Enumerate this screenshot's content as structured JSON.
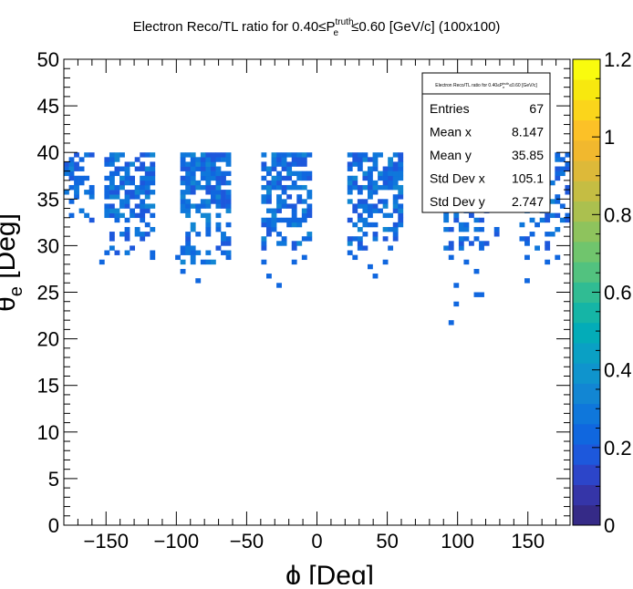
{
  "chart_data": {
    "type": "heatmap",
    "title": {
      "prefix": "Electron Reco/TL ratio for 0.40≤P",
      "sup": "truth",
      "sub": "e",
      "suffix": "≤0.60 [GeV/c] (100x100)"
    },
    "xlabel": "ϕ  [Deg]",
    "ylabel": {
      "main": "θ",
      "sub": "e",
      "rest": " [Deg]"
    },
    "xlim": [
      -180,
      180
    ],
    "ylim": [
      0,
      50
    ],
    "zlim": [
      0,
      1.2
    ],
    "bins": {
      "nx": 100,
      "ny": 100
    },
    "x_ticks": [
      -150,
      -100,
      -50,
      0,
      50,
      100,
      150
    ],
    "x_tick_labels": [
      "−150",
      "−100",
      "−50",
      "0",
      "50",
      "100",
      "150"
    ],
    "y_ticks": [
      0,
      5,
      10,
      15,
      20,
      25,
      30,
      35,
      40,
      45,
      50
    ],
    "y_tick_labels": [
      "0",
      "5",
      "10",
      "15",
      "20",
      "25",
      "30",
      "35",
      "40",
      "45",
      "50"
    ],
    "z_ticks": [
      0,
      0.2,
      0.4,
      0.6,
      0.8,
      1,
      1.2
    ],
    "z_tick_labels": [
      "0",
      "0.2",
      "0.4",
      "0.6",
      "0.8",
      "1",
      "1.2"
    ],
    "grid": false,
    "palette": [
      "#352a87",
      "#3535a8",
      "#2c45c9",
      "#1d58dc",
      "#1067df",
      "#0f77db",
      "#1286d3",
      "#0f94cd",
      "#0aa0c4",
      "#03acb8",
      "#15b5a6",
      "#30bc93",
      "#52c27f",
      "#70c56d",
      "#8ec35d",
      "#abc04f",
      "#c5bd43",
      "#ddb939",
      "#f1b82e",
      "#fcc127",
      "#fbd51b",
      "#f7e80f",
      "#f9fb0e"
    ],
    "regions": [
      {
        "x": [
          -180,
          -161
        ],
        "y": [
          32.5,
          40
        ],
        "density": 0.55,
        "zmax": 0.32
      },
      {
        "x": [
          -151,
          -116
        ],
        "y": [
          29,
          40
        ],
        "density": 0.72,
        "zmax": 0.34
      },
      {
        "x": [
          -97,
          -62
        ],
        "y": [
          28,
          40
        ],
        "density": 0.7,
        "zmax": 0.34
      },
      {
        "x": [
          -38,
          -5
        ],
        "y": [
          29,
          40
        ],
        "density": 0.68,
        "zmax": 0.34
      },
      {
        "x": [
          22,
          60
        ],
        "y": [
          29,
          40
        ],
        "density": 0.66,
        "zmax": 0.34
      },
      {
        "x": [
          90,
          128
        ],
        "y": [
          29.5,
          40
        ],
        "density": 0.5,
        "zmax": 0.32
      },
      {
        "x": [
          145,
          180
        ],
        "y": [
          29.5,
          40
        ],
        "density": 0.5,
        "zmax": 0.32
      }
    ],
    "sparse_cells": [
      [
        -152,
        28.4
      ],
      [
        -118,
        28.6
      ],
      [
        -88,
        29
      ],
      [
        -98,
        28.6
      ],
      [
        -94,
        27.4
      ],
      [
        -65,
        29
      ],
      [
        -78,
        28.4
      ],
      [
        -85,
        26.2
      ],
      [
        -75,
        28.2
      ],
      [
        -38,
        28.4
      ],
      [
        -33,
        26.8
      ],
      [
        -28,
        25.6
      ],
      [
        -18,
        28.4
      ],
      [
        -8,
        28.6
      ],
      [
        28,
        28.6
      ],
      [
        37,
        27.8
      ],
      [
        50,
        28.2
      ],
      [
        40,
        26.8
      ],
      [
        96,
        28.6
      ],
      [
        105,
        28.4
      ],
      [
        112,
        27.4
      ],
      [
        98,
        25.6
      ],
      [
        113,
        24.8
      ],
      [
        118,
        24.8
      ],
      [
        99,
        23.8
      ],
      [
        95,
        21.8
      ],
      [
        148,
        28.6
      ],
      [
        151,
        26.2
      ],
      [
        163,
        28.4
      ],
      [
        148,
        30.1
      ],
      [
        172,
        28.6
      ]
    ],
    "stats": {
      "title": {
        "prefix": "Electron Reco/TL ratio for 0.40≤P",
        "sup": "truth",
        "sub": "e",
        "suffix": "≤0.60 [GeV/c]"
      },
      "rows": [
        {
          "label": "Entries",
          "value": "67"
        },
        {
          "label": "Mean x",
          "value": "8.147"
        },
        {
          "label": "Mean y",
          "value": "35.85"
        },
        {
          "label": "Std Dev x",
          "value": "105.1"
        },
        {
          "label": "Std Dev y",
          "value": "2.747"
        }
      ]
    }
  }
}
